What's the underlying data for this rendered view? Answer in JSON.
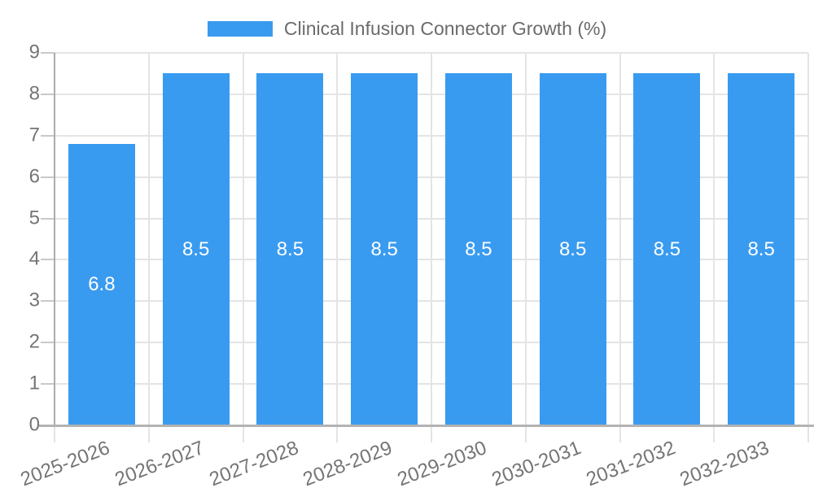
{
  "legend": {
    "series_label": "Clinical Infusion Connector Growth (%)"
  },
  "colors": {
    "bar": "#399bf0",
    "grid": "#e4e4e4",
    "axis": "#b0b0b0",
    "tick_label": "#757575",
    "title_text": "#6b6b6b",
    "data_label": "#ffffff"
  },
  "chart_data": {
    "type": "bar",
    "title": "Clinical Infusion Connector Growth (%)",
    "categories": [
      "2025-2026",
      "2026-2027",
      "2027-2028",
      "2028-2029",
      "2029-2030",
      "2030-2031",
      "2031-2032",
      "2032-2033"
    ],
    "values": [
      6.8,
      8.5,
      8.5,
      8.5,
      8.5,
      8.5,
      8.5,
      8.5
    ],
    "data_labels": [
      "6.8",
      "8.5",
      "8.5",
      "8.5",
      "8.5",
      "8.5",
      "8.5",
      "8.5"
    ],
    "xlabel": "",
    "ylabel": "",
    "ylim": [
      0,
      9
    ],
    "yticks": [
      0,
      1,
      2,
      3,
      4,
      5,
      6,
      7,
      8,
      9
    ],
    "grid": true,
    "legend_position": "top",
    "bar_label_position": "center"
  }
}
